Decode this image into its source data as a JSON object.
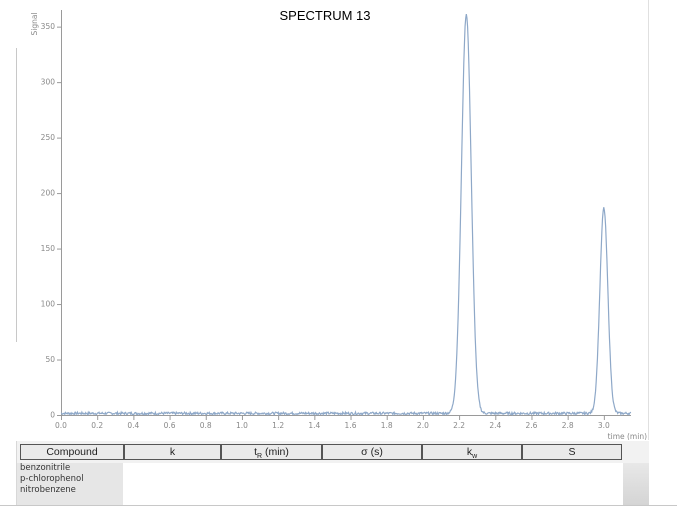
{
  "chart_data": {
    "type": "line",
    "title": "SPECTRUM 13",
    "xlabel": "time (min)",
    "ylabel": "Signal",
    "xlim": [
      0,
      3.15
    ],
    "ylim": [
      0,
      365
    ],
    "x_ticks": [
      "0.0",
      "0.2",
      "0.4",
      "0.6",
      "0.8",
      "1.0",
      "1.2",
      "1.4",
      "1.6",
      "1.8",
      "2.0",
      "2.2",
      "2.4",
      "2.6",
      "2.8",
      "3.0"
    ],
    "y_ticks": [
      "0",
      "50",
      "100",
      "150",
      "200",
      "250",
      "300",
      "350"
    ],
    "peaks": [
      {
        "time": 2.24,
        "height": 360,
        "width": 0.027
      },
      {
        "time": 3.0,
        "height": 185,
        "width": 0.022
      }
    ],
    "baseline": 1.5,
    "line_color": "#8ea8c8",
    "axis_color": "#9a9a9a",
    "grid": false,
    "legend": "none"
  },
  "table": {
    "headers": {
      "compound": "Compound",
      "k": "k",
      "tr": "t",
      "tr_sub": "R",
      "tr_unit": " (min)",
      "sigma": "σ (s)",
      "kw": "k",
      "kw_sub": "w",
      "s": "S"
    },
    "rows": [
      "benzonitrile",
      "p-chlorophenol",
      "nitrobenzene"
    ]
  }
}
